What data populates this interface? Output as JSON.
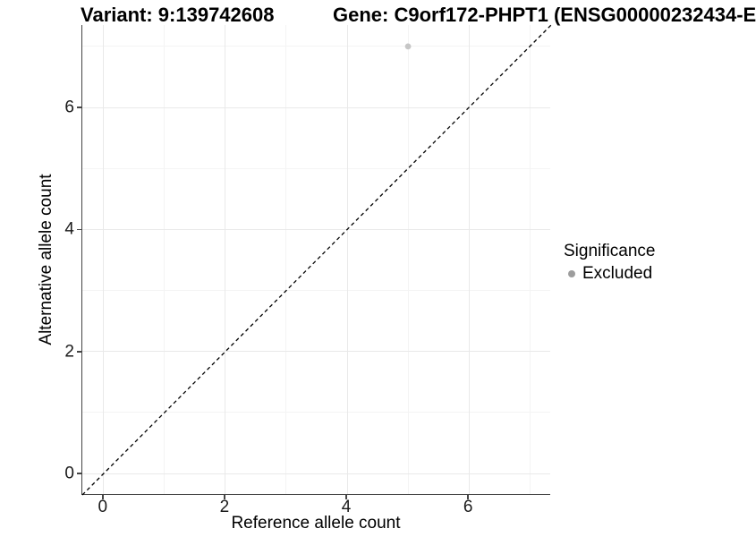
{
  "chart_data": {
    "type": "scatter",
    "title_left": "Variant: 9:139742608",
    "title_right": "Gene: C9orf172-PHPT1 (ENSG00000232434-E",
    "xlabel": "Reference allele count",
    "ylabel": "Alternative allele count",
    "xlim": [
      -0.35,
      7.35
    ],
    "ylim": [
      -0.35,
      7.35
    ],
    "x_ticks": [
      0,
      2,
      4,
      6
    ],
    "y_ticks": [
      0,
      2,
      4,
      6
    ],
    "x_minor_gridlines": [
      1,
      3,
      5,
      7
    ],
    "y_minor_gridlines": [
      1,
      3,
      5,
      7
    ],
    "grid": {
      "major_color": "#e9e9e9",
      "minor_color": "#f4f4f4",
      "grid_on": true
    },
    "points": [
      {
        "x": 5,
        "y": 7,
        "significance": "Excluded",
        "color": "#c6c6c6",
        "radius": 3.4
      }
    ],
    "reference_line": {
      "slope": 1,
      "intercept": 0,
      "style": "dashed",
      "color": "#000000",
      "description": "identity line y = x"
    },
    "legend": {
      "title": "Significance",
      "position": "right",
      "items": [
        {
          "label": "Excluded",
          "color": "#9d9d9d"
        }
      ]
    },
    "axis_line_color": "#454545"
  }
}
